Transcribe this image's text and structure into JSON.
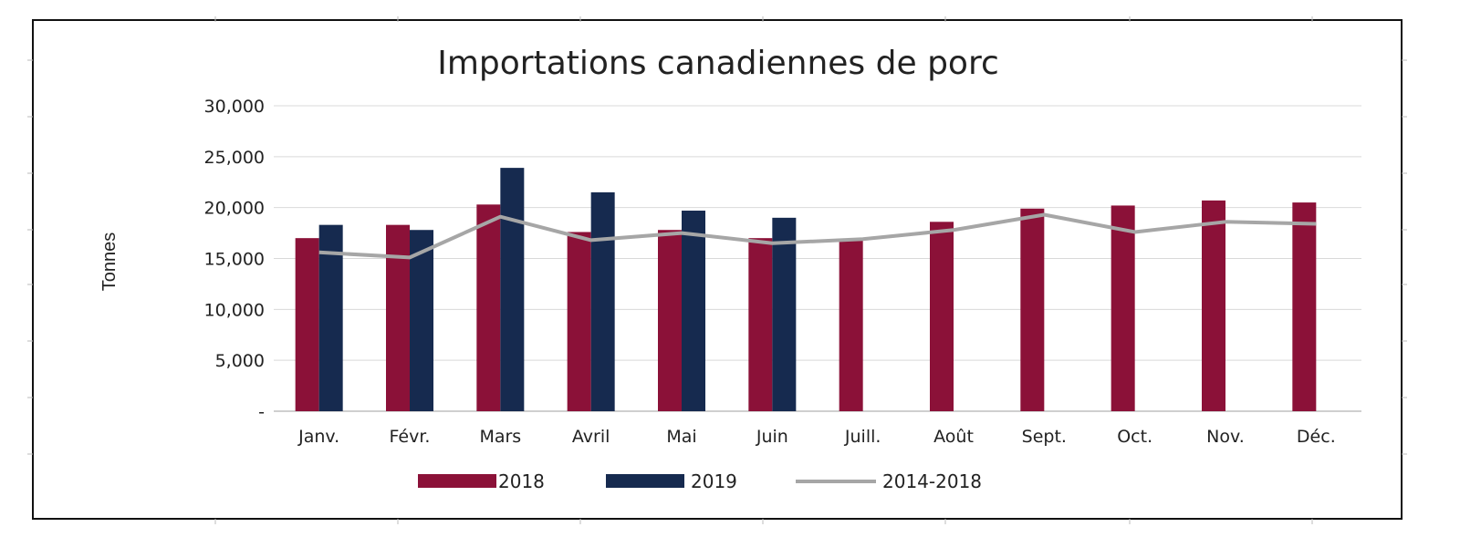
{
  "chart_data": {
    "type": "bar",
    "title": "Importations canadiennes de porc",
    "xlabel": "",
    "ylabel": "Tonnes",
    "ylim": [
      0,
      30000
    ],
    "yticks": [
      0,
      5000,
      10000,
      15000,
      20000,
      25000,
      30000
    ],
    "ytick_labels": [
      "-",
      "5,000",
      "10,000",
      "15,000",
      "20,000",
      "25,000",
      "30,000"
    ],
    "categories": [
      "Janv.",
      "Févr.",
      "Mars",
      "Avril",
      "Mai",
      "Juin",
      "Juill.",
      "Août",
      "Sept.",
      "Oct.",
      "Nov.",
      "Déc."
    ],
    "series": [
      {
        "name": "2018",
        "type": "bar",
        "color": "#8b1138",
        "values": [
          17000,
          18300,
          20300,
          17600,
          17800,
          17000,
          16800,
          18600,
          19900,
          20200,
          20700,
          20500
        ]
      },
      {
        "name": "2019",
        "type": "bar",
        "color": "#162a4f",
        "values": [
          18300,
          17800,
          23900,
          21500,
          19700,
          19000,
          null,
          null,
          null,
          null,
          null,
          null
        ]
      },
      {
        "name": "2014-2018",
        "type": "line",
        "color": "#a6a6a6",
        "values": [
          15600,
          15100,
          19100,
          16800,
          17500,
          16500,
          16900,
          17800,
          19300,
          17600,
          18600,
          18400
        ]
      }
    ],
    "grid": true,
    "legend": "bottom"
  }
}
